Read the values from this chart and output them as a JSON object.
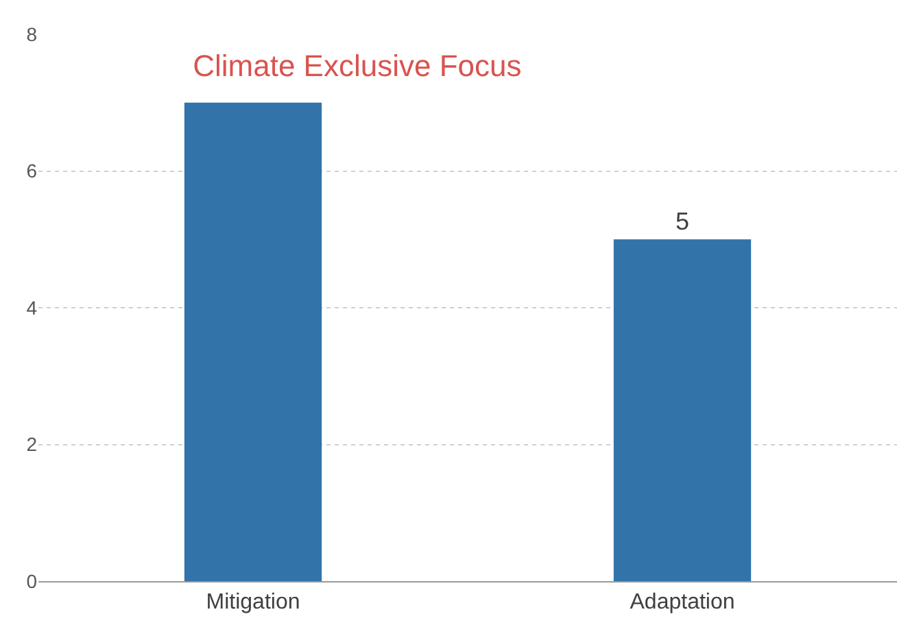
{
  "chart_data": {
    "type": "bar",
    "title": "Climate Exclusive Focus",
    "categories": [
      "Mitigation",
      "Adaptation"
    ],
    "values": [
      7,
      5
    ],
    "value_labels": [
      null,
      "5"
    ],
    "color": "#3274a9",
    "ylim": [
      0,
      8
    ],
    "yticks": [
      0,
      2,
      4,
      6,
      8
    ],
    "grid": "y",
    "legend": false
  }
}
